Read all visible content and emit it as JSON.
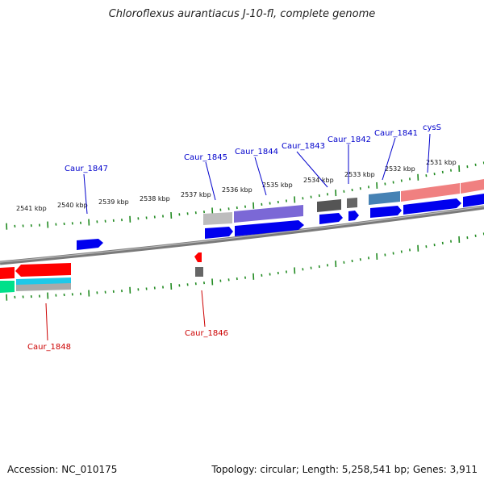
{
  "title": "Chloroflexus aurantiacus J-10-fl, complete genome",
  "footer": {
    "accession": "Accession: NC_010175",
    "topology": "Topology: circular; Length: 5,258,541 bp; Genes: 3,911"
  },
  "colors": {
    "plus_label": "#0000cc",
    "minus_label": "#cc0000",
    "ticks": "#228b22",
    "backbone": "#808080"
  },
  "ticks": [
    "2541 kbp",
    "2540 kbp",
    "2539 kbp",
    "2538 kbp",
    "2537 kbp",
    "2536 kbp",
    "2535 kbp",
    "2534 kbp",
    "2533 kbp",
    "2532 kbp",
    "2531 kbp"
  ],
  "gene_labels": {
    "caur_1847": "Caur_1847",
    "caur_1845": "Caur_1845",
    "caur_1844": "Caur_1844",
    "caur_1843": "Caur_1843",
    "caur_1842": "Caur_1842",
    "caur_1841": "Caur_1841",
    "cyss": "cysS",
    "caur_1848": "Caur_1848",
    "caur_1846": "Caur_1846"
  }
}
